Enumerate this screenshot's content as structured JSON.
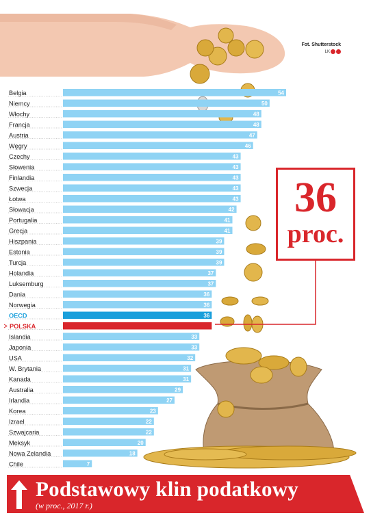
{
  "chart_data": {
    "type": "bar",
    "orientation": "horizontal",
    "title": "Podstawowy klin podatkowy",
    "subtitle": "(w proc., 2017 r.)",
    "categories": [
      "Belgia",
      "Niemcy",
      "Włochy",
      "Francja",
      "Austria",
      "Węgry",
      "Czechy",
      "Słowenia",
      "Finlandia",
      "Szwecja",
      "Łotwa",
      "Słowacja",
      "Portugalia",
      "Grecja",
      "Hiszpania",
      "Estonia",
      "Turcja",
      "Holandia",
      "Luksemburg",
      "Dania",
      "Norwegia",
      "OECD",
      "POLSKA",
      "Islandia",
      "Japonia",
      "USA",
      "W. Brytania",
      "Kanada",
      "Australia",
      "Irlandia",
      "Korea",
      "Izrael",
      "Szwajcaria",
      "Meksyk",
      "Nowa Zelandia",
      "Chile"
    ],
    "values": [
      54,
      50,
      48,
      48,
      47,
      46,
      43,
      43,
      43,
      43,
      43,
      42,
      41,
      41,
      39,
      39,
      39,
      37,
      37,
      36,
      36,
      36,
      36,
      33,
      33,
      32,
      31,
      31,
      29,
      27,
      23,
      22,
      22,
      20,
      18,
      7
    ],
    "value_labels": [
      "54",
      "50",
      "48",
      "48",
      "47",
      "46",
      "43",
      "43",
      "43",
      "43",
      "43",
      "42",
      "41",
      "41",
      "39",
      "39",
      "39",
      "37",
      "37",
      "36",
      "36",
      "36",
      "",
      "33",
      "33",
      "32",
      "31",
      "31",
      "29",
      "27",
      "23",
      "22",
      "22",
      "20",
      "18",
      "7"
    ],
    "highlights": {
      "OECD": "#1a9fdb",
      "POLSKA": "#d9262b"
    },
    "bar_color": "#8fd3f4",
    "label_colors": {
      "default": "#222222",
      "OECD": "#1a9fdb",
      "POLSKA": "#d9262b"
    },
    "xlim": [
      0,
      54
    ],
    "grid": false,
    "legend": "none"
  },
  "callout": {
    "number": "36",
    "unit": "proc."
  },
  "credit": {
    "photo": "Fot. Shutterstock",
    "author": "LK"
  },
  "colors": {
    "accent": "#d9262b",
    "bar": "#8fd3f4",
    "oecd": "#1a9fdb"
  }
}
